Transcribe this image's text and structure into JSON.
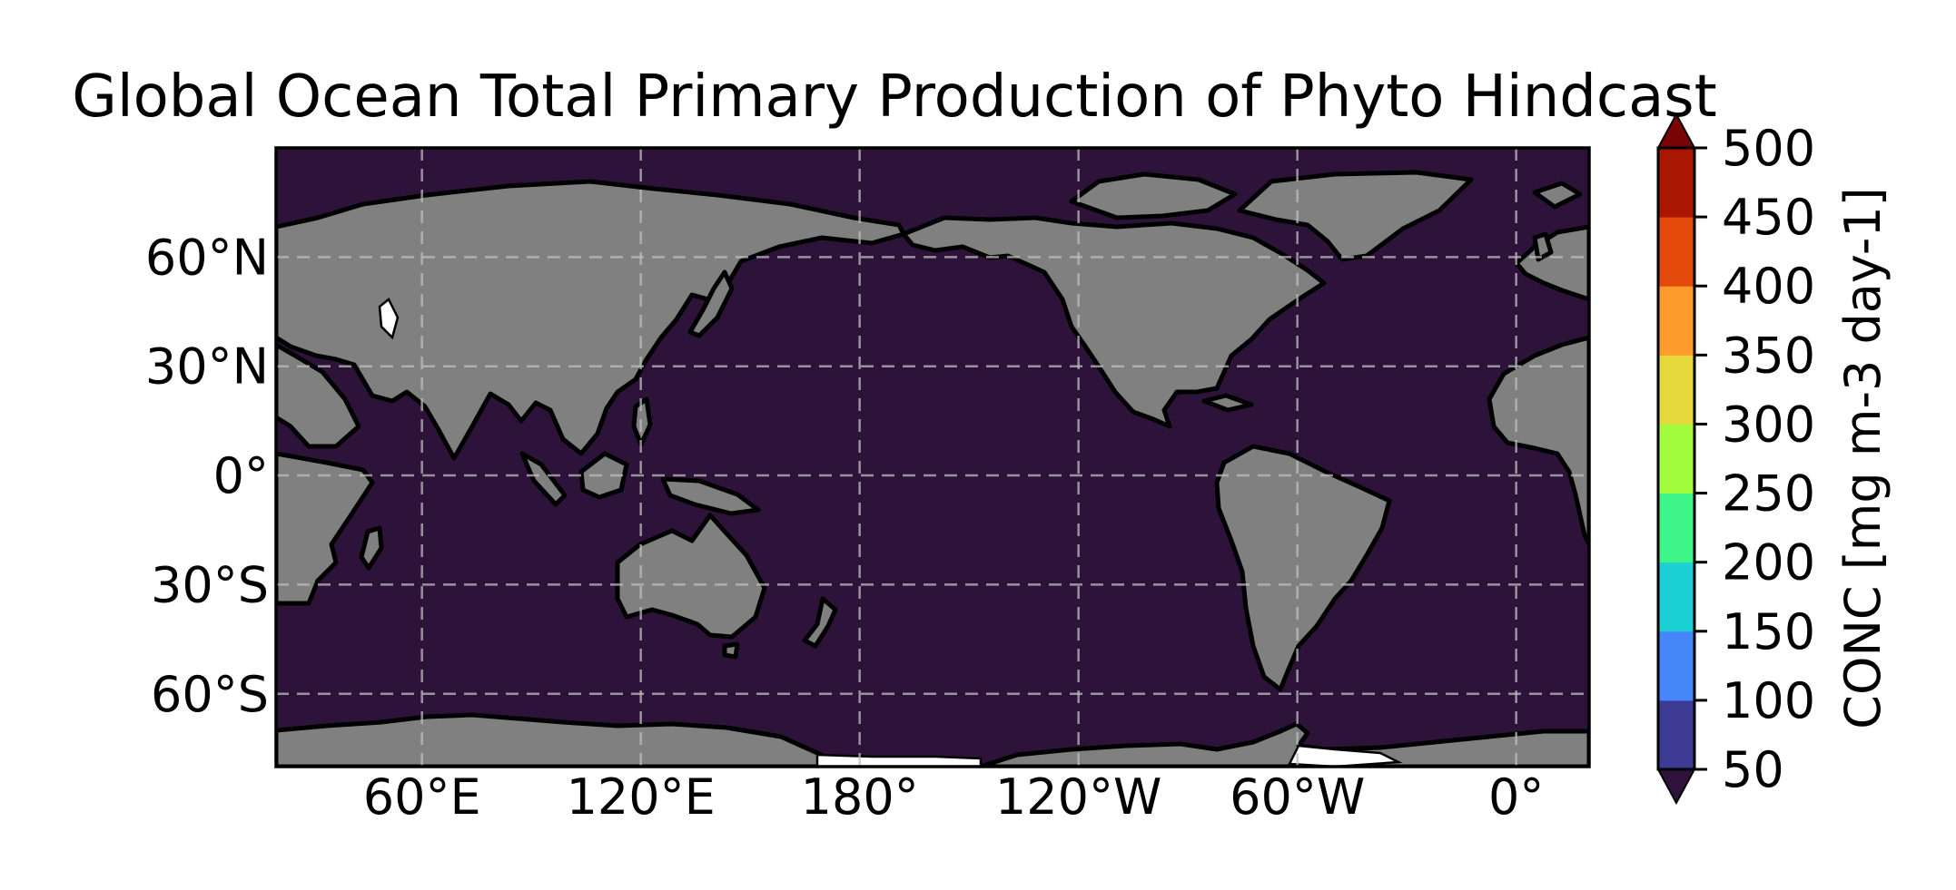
{
  "title": "Global Ocean Total Primary Production of Phyto Hindcast",
  "map": {
    "projection": "PlateCarree",
    "central_longitude": 180,
    "extent": {
      "lon_min": 20,
      "lon_max": 380,
      "lat_min": -80,
      "lat_max": 90
    },
    "ocean_color": "#2d1239",
    "land_color": "#808080",
    "coastline_color": "#000000",
    "gridlines": {
      "lons": [
        60,
        120,
        180,
        240,
        300,
        360
      ],
      "lats": [
        60,
        30,
        0,
        -30,
        -60
      ],
      "style": "dashed"
    },
    "lon_ticks": [
      {
        "lon": 60,
        "label": "60°E"
      },
      {
        "lon": 120,
        "label": "120°E"
      },
      {
        "lon": 180,
        "label": "180°"
      },
      {
        "lon": 240,
        "label": "120°W"
      },
      {
        "lon": 300,
        "label": "60°W"
      },
      {
        "lon": 360,
        "label": "0°"
      }
    ],
    "lat_ticks": [
      {
        "lat": 60,
        "label": "60°N"
      },
      {
        "lat": 30,
        "label": "30°N"
      },
      {
        "lat": 0,
        "label": "0°"
      },
      {
        "lat": -30,
        "label": "30°S"
      },
      {
        "lat": -60,
        "label": "60°S"
      }
    ]
  },
  "colorbar": {
    "label": "CONC [mg m-3 day-1]",
    "extend": "both",
    "under_color": "#30123b",
    "over_color": "#7a0403",
    "levels": [
      {
        "value": 50,
        "label": "50"
      },
      {
        "value": 100,
        "label": "100"
      },
      {
        "value": 150,
        "label": "150"
      },
      {
        "value": 200,
        "label": "200"
      },
      {
        "value": 250,
        "label": "250"
      },
      {
        "value": 300,
        "label": "300"
      },
      {
        "value": 350,
        "label": "350"
      },
      {
        "value": 400,
        "label": "400"
      },
      {
        "value": 450,
        "label": "450"
      },
      {
        "value": 500,
        "label": "500"
      }
    ],
    "colors": [
      "#3e3b94",
      "#4686fb",
      "#1bcfd4",
      "#3ef58a",
      "#a2fc3c",
      "#e5d83a",
      "#fe9b2d",
      "#e54a0d",
      "#a91601"
    ]
  }
}
